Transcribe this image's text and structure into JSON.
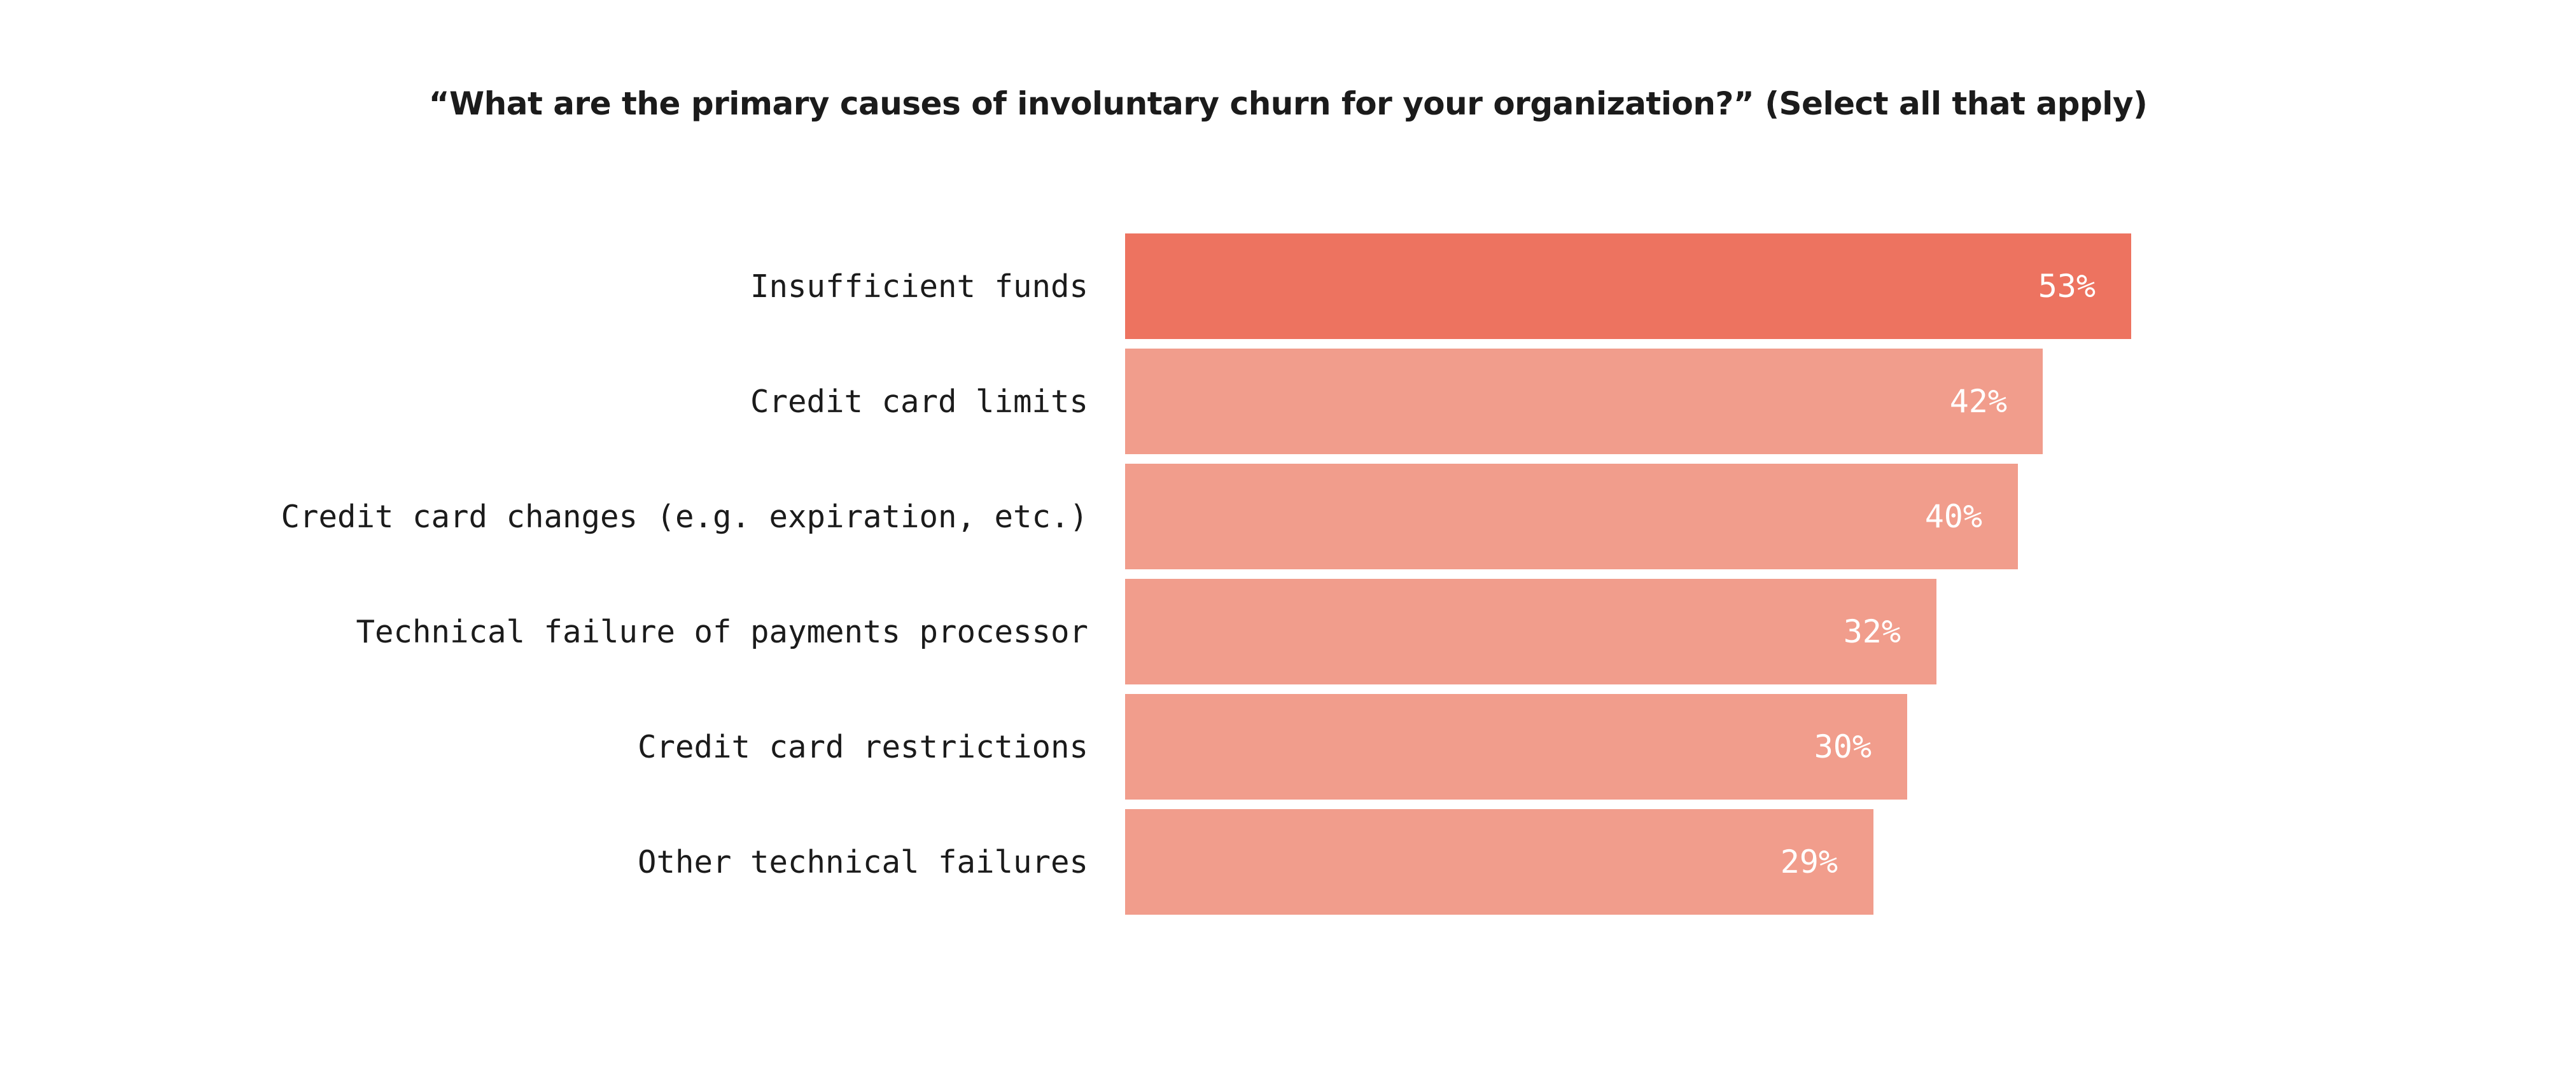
{
  "chart_data": {
    "type": "bar",
    "orientation": "horizontal",
    "title": "“What are the primary causes of involuntary churn for your organization?” (Select all that apply)",
    "categories": [
      "Insufficient funds",
      "Credit card limits",
      "Credit card changes (e.g. expiration, etc.)",
      "Technical failure of payments processor",
      "Credit card restrictions",
      "Other technical failures"
    ],
    "values": [
      53,
      42,
      40,
      32,
      30,
      29
    ],
    "value_labels": [
      "53%",
      "42%",
      "40%",
      "32%",
      "30%",
      "29%"
    ],
    "unit": "%",
    "xlabel": "",
    "ylabel": "",
    "grid": false,
    "axes_hidden": true,
    "legend": false,
    "highlight_index": 0,
    "bar_pixel_widths": [
      1581,
      1442,
      1403,
      1275,
      1229,
      1176
    ],
    "colors": {
      "highlight_bar": "#ED7360",
      "bar": "#F19D8C",
      "value_text": "#FFFFFF",
      "label_text": "#1B1B1B",
      "background": "#FFFFFF"
    }
  }
}
